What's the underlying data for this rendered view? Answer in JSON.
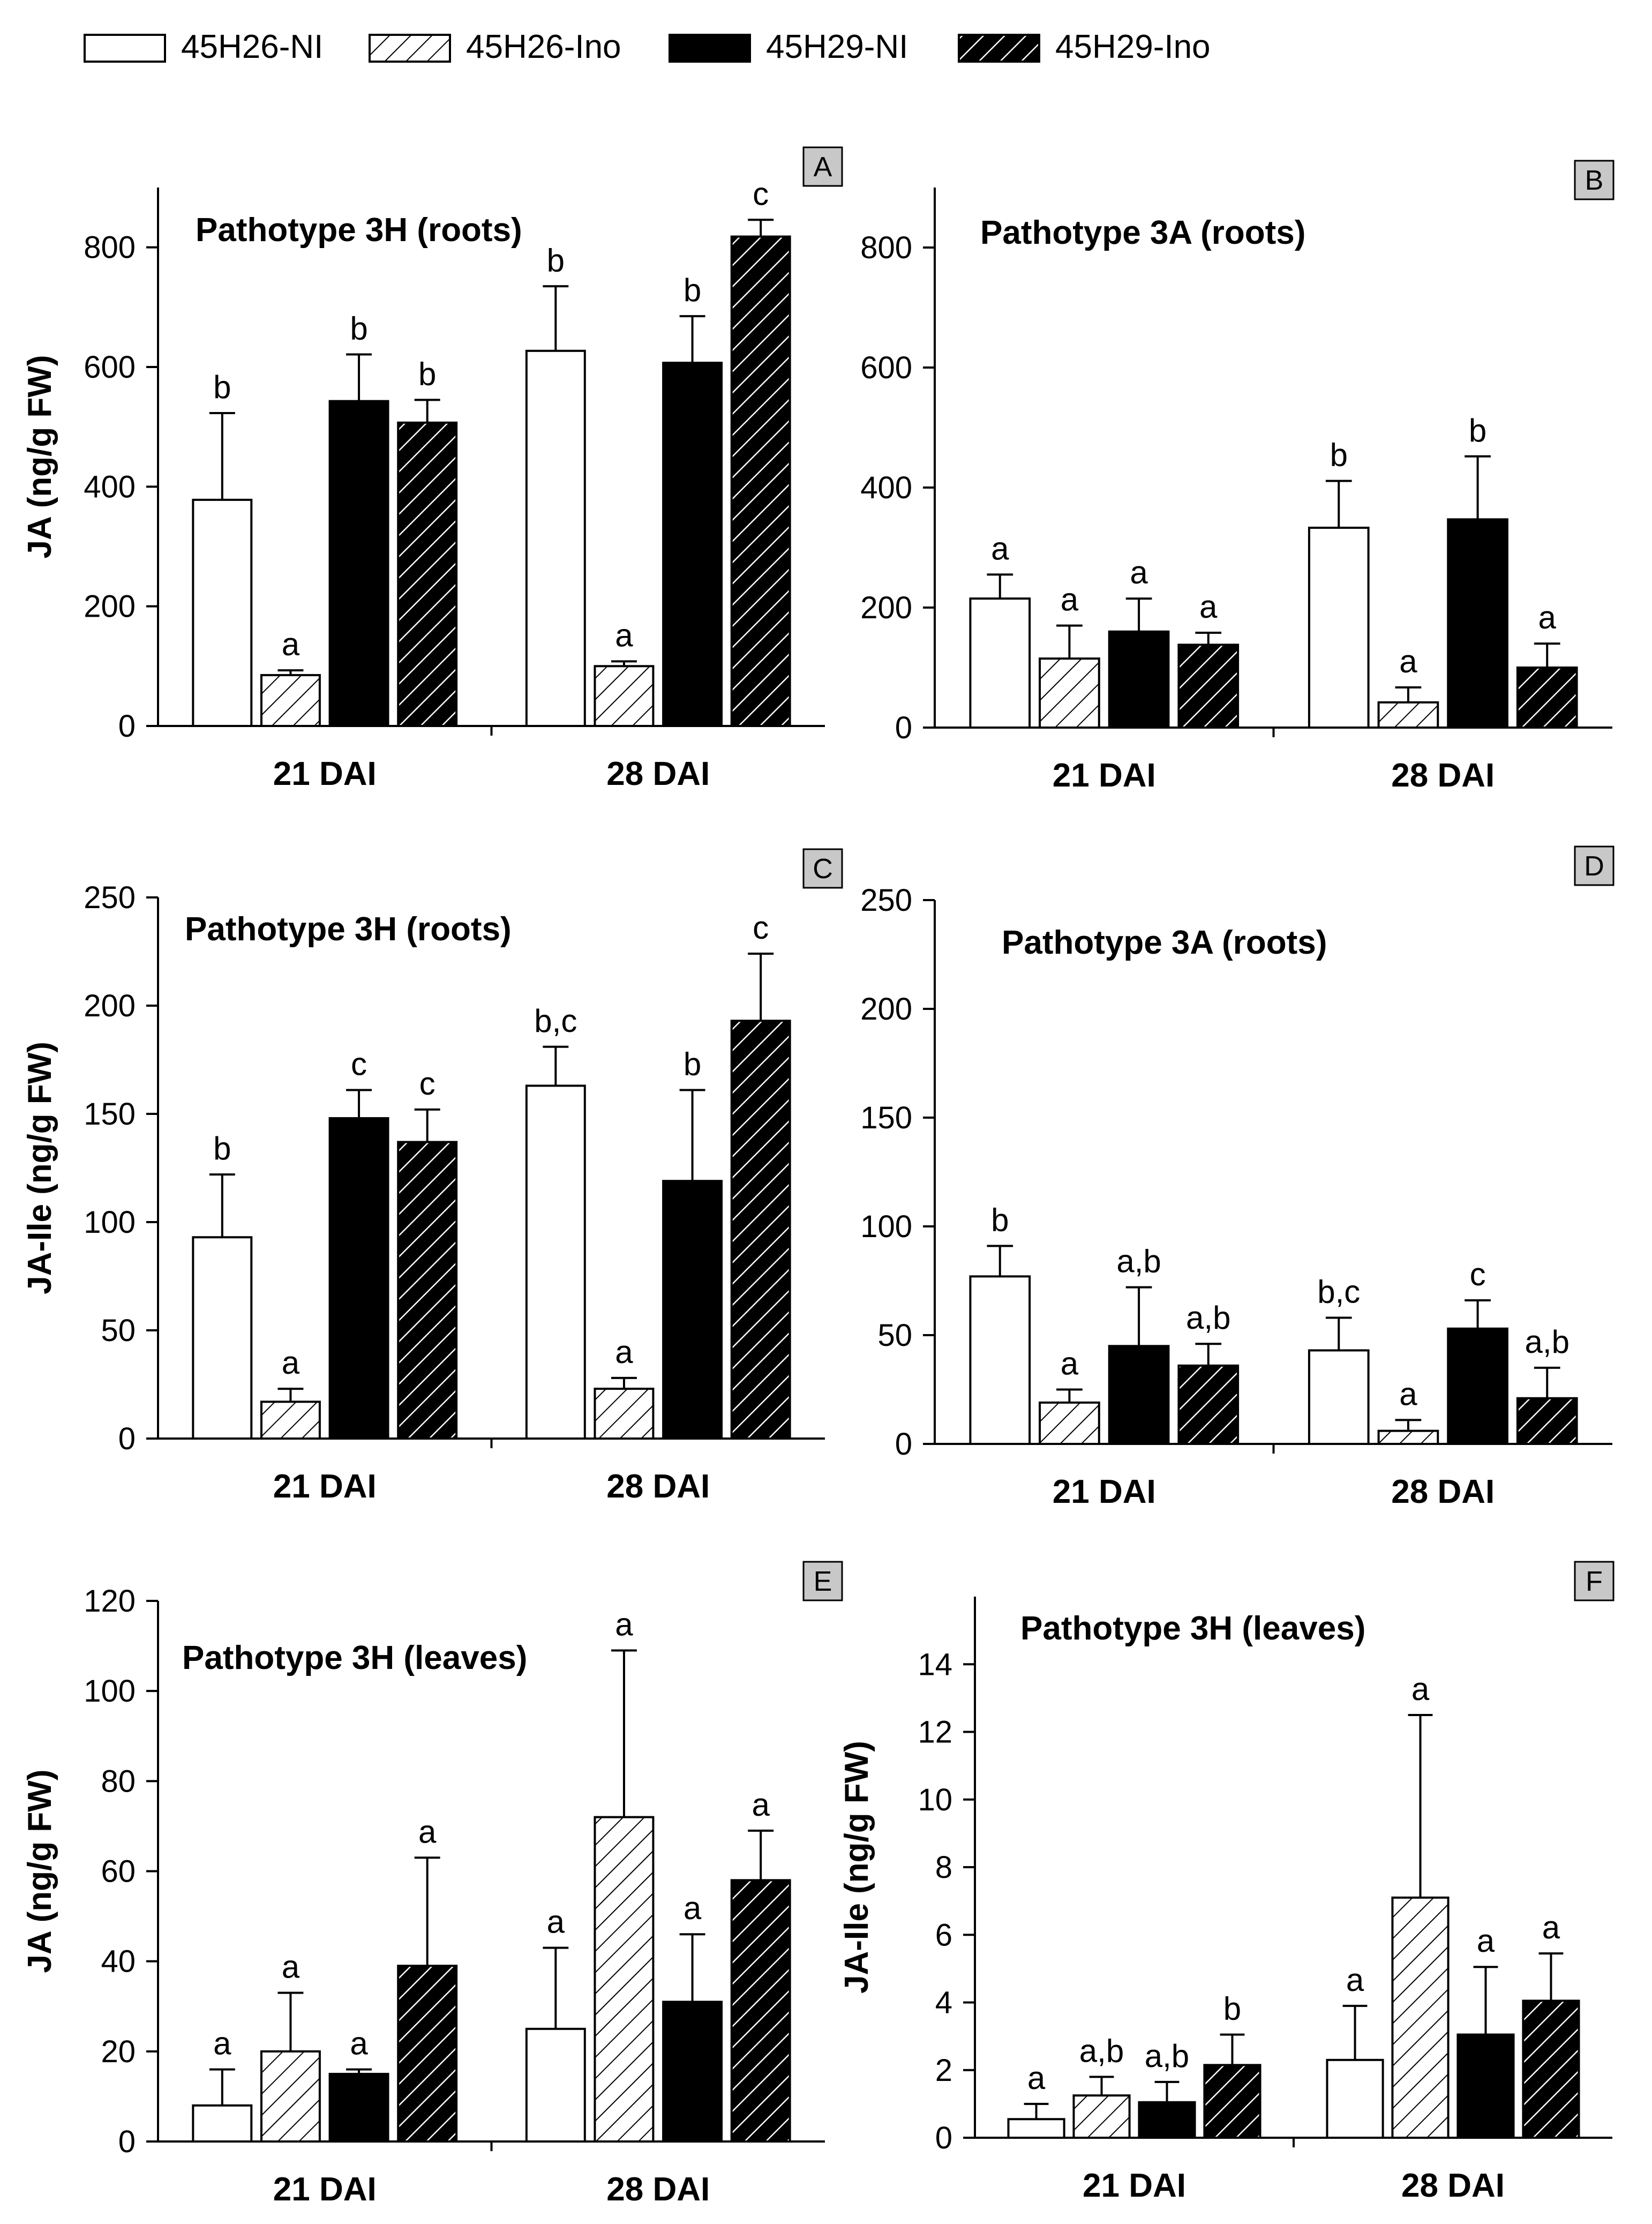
{
  "legend": [
    {
      "label": "45H26-NI",
      "style": "white"
    },
    {
      "label": "45H26-Ino",
      "style": "hatch-white"
    },
    {
      "label": "45H29-NI",
      "style": "black"
    },
    {
      "label": "45H29-Ino",
      "style": "hatch-black"
    }
  ],
  "colors": {
    "bar_black": "#000000",
    "bar_white": "#ffffff",
    "panel_letter_bg": "#c8c8c8"
  },
  "chart_data": [
    {
      "panel": "A",
      "type": "bar",
      "title": "Pathotype 3H (roots)",
      "ylabel": "JA (ng/g  FW)",
      "ylim": [
        0,
        900
      ],
      "yticks": [
        0,
        200,
        400,
        600,
        800
      ],
      "categories": [
        "21 DAI",
        "28 DAI"
      ],
      "series": [
        {
          "name": "45H26-NI",
          "values": [
            378,
            627
          ],
          "errors": [
            145,
            108
          ],
          "letters": [
            "b",
            "b"
          ]
        },
        {
          "name": "45H26-Ino",
          "values": [
            85,
            100
          ],
          "errors": [
            8,
            8
          ],
          "letters": [
            "a",
            "a"
          ]
        },
        {
          "name": "45H29-NI",
          "values": [
            543,
            607
          ],
          "errors": [
            78,
            78
          ],
          "letters": [
            "b",
            "b"
          ]
        },
        {
          "name": "45H29-Ino",
          "values": [
            507,
            818
          ],
          "errors": [
            38,
            28
          ],
          "letters": [
            "b",
            "c"
          ]
        }
      ]
    },
    {
      "panel": "B",
      "type": "bar",
      "title": "Pathotype 3A (roots)",
      "ylabel": "",
      "ylim": [
        0,
        900
      ],
      "yticks": [
        0,
        200,
        400,
        600,
        800
      ],
      "categories": [
        "21 DAI",
        "28 DAI"
      ],
      "series": [
        {
          "name": "45H26-NI",
          "values": [
            215,
            333
          ],
          "errors": [
            40,
            78
          ],
          "letters": [
            "a",
            "b"
          ]
        },
        {
          "name": "45H26-Ino",
          "values": [
            115,
            42
          ],
          "errors": [
            55,
            25
          ],
          "letters": [
            "a",
            "a"
          ]
        },
        {
          "name": "45H29-NI",
          "values": [
            160,
            347
          ],
          "errors": [
            55,
            105
          ],
          "letters": [
            "a",
            "b"
          ]
        },
        {
          "name": "45H29-Ino",
          "values": [
            138,
            100
          ],
          "errors": [
            20,
            40
          ],
          "letters": [
            "a",
            "a"
          ]
        }
      ]
    },
    {
      "panel": "C",
      "type": "bar",
      "title": "Pathotype 3H (roots)",
      "ylabel": "JA-Ile (ng/g  FW)",
      "ylim": [
        0,
        250
      ],
      "yticks": [
        0,
        50,
        100,
        150,
        200,
        250
      ],
      "categories": [
        "21 DAI",
        "28 DAI"
      ],
      "series": [
        {
          "name": "45H26-NI",
          "values": [
            93,
            163
          ],
          "errors": [
            29,
            18
          ],
          "letters": [
            "b",
            "b,c"
          ]
        },
        {
          "name": "45H26-Ino",
          "values": [
            17,
            23
          ],
          "errors": [
            6,
            5
          ],
          "letters": [
            "a",
            "a"
          ]
        },
        {
          "name": "45H29-NI",
          "values": [
            148,
            119
          ],
          "errors": [
            13,
            42
          ],
          "letters": [
            "c",
            "b"
          ]
        },
        {
          "name": "45H29-Ino",
          "values": [
            137,
            193
          ],
          "errors": [
            15,
            31
          ],
          "letters": [
            "c",
            "c"
          ]
        }
      ]
    },
    {
      "panel": "D",
      "type": "bar",
      "title": "Pathotype 3A (roots)",
      "ylabel": "",
      "ylim": [
        0,
        250
      ],
      "yticks": [
        0,
        50,
        100,
        150,
        200,
        250
      ],
      "categories": [
        "21 DAI",
        "28 DAI"
      ],
      "series": [
        {
          "name": "45H26-NI",
          "values": [
            77,
            43
          ],
          "errors": [
            14,
            15
          ],
          "letters": [
            "b",
            "b,c"
          ]
        },
        {
          "name": "45H26-Ino",
          "values": [
            19,
            6
          ],
          "errors": [
            6,
            5
          ],
          "letters": [
            "a",
            "a"
          ]
        },
        {
          "name": "45H29-NI",
          "values": [
            45,
            53
          ],
          "errors": [
            27,
            13
          ],
          "letters": [
            "a,b",
            "c"
          ]
        },
        {
          "name": "45H29-Ino",
          "values": [
            36,
            21
          ],
          "errors": [
            10,
            14
          ],
          "letters": [
            "a,b",
            "a,b"
          ]
        }
      ]
    },
    {
      "panel": "E",
      "type": "bar",
      "title": "Pathotype 3H (leaves)",
      "ylabel": "JA (ng/g  FW)",
      "ylim": [
        0,
        120
      ],
      "yticks": [
        0,
        20,
        40,
        60,
        80,
        100,
        120
      ],
      "categories": [
        "21 DAI",
        "28 DAI"
      ],
      "series": [
        {
          "name": "45H26-NI",
          "values": [
            8,
            25
          ],
          "errors": [
            8,
            18
          ],
          "letters": [
            "a",
            "a"
          ]
        },
        {
          "name": "45H26-Ino",
          "values": [
            20,
            72
          ],
          "errors": [
            13,
            37
          ],
          "letters": [
            "a",
            "a"
          ]
        },
        {
          "name": "45H29-NI",
          "values": [
            15,
            31
          ],
          "errors": [
            1,
            15
          ],
          "letters": [
            "a",
            "a"
          ]
        },
        {
          "name": "45H29-Ino",
          "values": [
            39,
            58
          ],
          "errors": [
            24,
            11
          ],
          "letters": [
            "a",
            "a"
          ]
        }
      ]
    },
    {
      "panel": "F",
      "type": "bar",
      "title": "Pathotype 3H (leaves)",
      "ylabel": "JA-Ile (ng/g  FW)",
      "ylim": [
        0,
        16
      ],
      "yticks": [
        0,
        2,
        4,
        6,
        8,
        10,
        12,
        14
      ],
      "categories": [
        "21 DAI",
        "28 DAI"
      ],
      "series": [
        {
          "name": "45H26-NI",
          "values": [
            0.55,
            2.3
          ],
          "errors": [
            0.45,
            1.6
          ],
          "letters": [
            "a",
            "a"
          ]
        },
        {
          "name": "45H26-Ino",
          "values": [
            1.25,
            7.1
          ],
          "errors": [
            0.55,
            5.4
          ],
          "letters": [
            "a,b",
            "a"
          ]
        },
        {
          "name": "45H29-NI",
          "values": [
            1.05,
            3.05
          ],
          "errors": [
            0.6,
            2.0
          ],
          "letters": [
            "a,b",
            "a"
          ]
        },
        {
          "name": "45H29-Ino",
          "values": [
            2.15,
            4.05
          ],
          "errors": [
            0.9,
            1.4
          ],
          "letters": [
            "b",
            "a"
          ]
        }
      ]
    }
  ]
}
